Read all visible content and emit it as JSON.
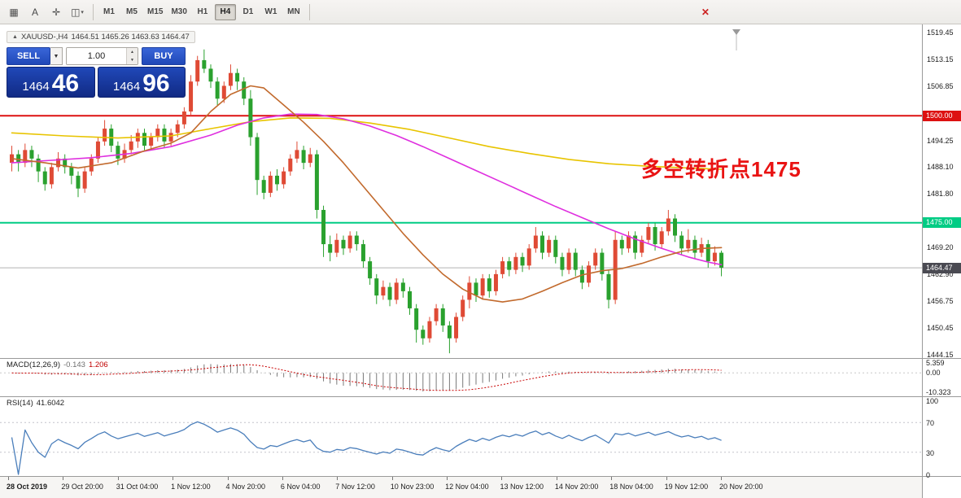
{
  "toolbar": {
    "icons": [
      {
        "name": "grid-icon",
        "glyph": "▦"
      },
      {
        "name": "text-tool-icon",
        "glyph": "A"
      },
      {
        "name": "crosshair-icon",
        "glyph": "✛"
      },
      {
        "name": "draw-tools-icon",
        "glyph": "◫"
      }
    ],
    "dropdown_glyph": "▾",
    "timeframes": [
      "M1",
      "M5",
      "M15",
      "M30",
      "H1",
      "H4",
      "D1",
      "W1",
      "MN"
    ],
    "active_timeframe": "H4",
    "delete_icon_glyph": "✕"
  },
  "chart": {
    "marker": "▲",
    "symbol_period": "XAUUSD-,H4",
    "ohlc": "1464.51 1465.26 1463.63 1464.47"
  },
  "trade_panel": {
    "sell_label": "SELL",
    "buy_label": "BUY",
    "dropdown_glyph": "▼",
    "volume": "1.00",
    "spinner_up": "▲",
    "spinner_down": "▼",
    "sell_price_big": "1464",
    "sell_price_pips": "46",
    "buy_price_big": "1464",
    "buy_price_pips": "96"
  },
  "annotation": {
    "text": "多空转折点1475",
    "color": "#e91313"
  },
  "lines": {
    "resistance": {
      "price": "1500.00",
      "color": "#dd1111"
    },
    "support": {
      "price": "1475.00",
      "color": "#00cc84"
    },
    "current": {
      "price": "1464.47",
      "color": "#4a4a52"
    }
  },
  "price_axis": {
    "ticks": [
      "1519.45",
      "1513.15",
      "1506.85",
      "1500.00",
      "1494.25",
      "1488.10",
      "1481.80",
      "1475.00",
      "1469.20",
      "1462.90",
      "1456.75",
      "1450.45",
      "1444.15"
    ]
  },
  "macd": {
    "name": "MACD(12,26,9)",
    "main_value": "-0.143",
    "signal_value": "1.206",
    "axis": [
      "5.359",
      "0.00",
      "-10.323"
    ]
  },
  "rsi": {
    "name": "RSI(14)",
    "value": "41.6042",
    "axis": [
      "100",
      "70",
      "30",
      "0"
    ],
    "levels": [
      70,
      30
    ]
  },
  "time_axis": {
    "labels": [
      "28 Oct 2019",
      "29 Oct 20:00",
      "31 Oct 04:00",
      "1 Nov 12:00",
      "4 Nov 20:00",
      "6 Nov 04:00",
      "7 Nov 12:00",
      "10 Nov 23:00",
      "12 Nov 04:00",
      "13 Nov 12:00",
      "14 Nov 20:00",
      "18 Nov 04:00",
      "19 Nov 12:00",
      "20 Nov 20:00"
    ]
  },
  "chart_data": {
    "type": "candlestick",
    "symbol": "XAUUSD-",
    "timeframe": "H4",
    "up_color": "#df4a35",
    "down_color": "#2aa12e",
    "price_range": [
      1444.15,
      1519.45
    ],
    "horizontal_levels": [
      1500.0,
      1475.0,
      1464.47
    ],
    "indicators": {
      "macd": {
        "fast": 12,
        "slow": 26,
        "signal": 9
      },
      "rsi": {
        "period": 14
      }
    },
    "candles": [
      [
        1489,
        1493,
        1487,
        1491
      ],
      [
        1491,
        1492,
        1487,
        1489
      ],
      [
        1489,
        1493.5,
        1488,
        1492
      ],
      [
        1492,
        1493,
        1488,
        1490
      ],
      [
        1490,
        1491,
        1484.5,
        1487
      ],
      [
        1487,
        1488,
        1482.5,
        1484
      ],
      [
        1484,
        1489,
        1483,
        1488
      ],
      [
        1488,
        1491.5,
        1487,
        1490
      ],
      [
        1490,
        1491,
        1486.5,
        1488
      ],
      [
        1488,
        1489,
        1484,
        1486
      ],
      [
        1486,
        1487,
        1481,
        1483
      ],
      [
        1483,
        1488,
        1482,
        1487
      ],
      [
        1487,
        1491,
        1486,
        1490
      ],
      [
        1490,
        1495,
        1489,
        1494
      ],
      [
        1494,
        1499,
        1493,
        1497
      ],
      [
        1497,
        1498,
        1491.5,
        1493
      ],
      [
        1493,
        1494,
        1488.5,
        1490
      ],
      [
        1490,
        1493.5,
        1489,
        1492
      ],
      [
        1492,
        1495.5,
        1491,
        1494
      ],
      [
        1494,
        1497,
        1492.5,
        1496
      ],
      [
        1496,
        1497,
        1492,
        1493
      ],
      [
        1493,
        1496,
        1492,
        1495
      ],
      [
        1495,
        1498,
        1494,
        1497
      ],
      [
        1497,
        1498,
        1492.5,
        1494
      ],
      [
        1494,
        1497,
        1493,
        1496
      ],
      [
        1496,
        1499,
        1495,
        1498
      ],
      [
        1498,
        1502,
        1497,
        1501
      ],
      [
        1501,
        1509.5,
        1500,
        1508
      ],
      [
        1508,
        1514,
        1507,
        1513
      ],
      [
        1513,
        1515.5,
        1510,
        1511
      ],
      [
        1511,
        1512,
        1506.5,
        1508
      ],
      [
        1508,
        1509,
        1502.5,
        1504
      ],
      [
        1504,
        1508,
        1503,
        1507
      ],
      [
        1507,
        1512,
        1506,
        1510
      ],
      [
        1510,
        1511,
        1506,
        1508
      ],
      [
        1508,
        1509,
        1502.5,
        1504
      ],
      [
        1504,
        1506,
        1493,
        1495
      ],
      [
        1495,
        1496,
        1481.5,
        1485
      ],
      [
        1485,
        1486,
        1480.5,
        1482
      ],
      [
        1482,
        1487,
        1481,
        1486
      ],
      [
        1486,
        1487.5,
        1482.5,
        1484
      ],
      [
        1484,
        1488,
        1483,
        1487
      ],
      [
        1487,
        1491,
        1486,
        1490
      ],
      [
        1490,
        1494,
        1489,
        1492
      ],
      [
        1492,
        1493,
        1487.5,
        1489
      ],
      [
        1489,
        1492.5,
        1488,
        1491
      ],
      [
        1491,
        1492,
        1476,
        1478
      ],
      [
        1478,
        1479,
        1467,
        1470
      ],
      [
        1470,
        1472,
        1466,
        1468
      ],
      [
        1468,
        1472.5,
        1467,
        1471
      ],
      [
        1471,
        1472,
        1467.5,
        1469
      ],
      [
        1469,
        1473,
        1468,
        1472
      ],
      [
        1472,
        1473,
        1468.5,
        1470
      ],
      [
        1470,
        1471,
        1464.5,
        1466
      ],
      [
        1466,
        1467,
        1460.5,
        1462
      ],
      [
        1462,
        1463,
        1456,
        1458
      ],
      [
        1458,
        1461.5,
        1457,
        1460
      ],
      [
        1460,
        1461,
        1455.5,
        1457
      ],
      [
        1457,
        1462,
        1456,
        1461
      ],
      [
        1461,
        1462,
        1457.5,
        1459
      ],
      [
        1459,
        1460,
        1453.5,
        1455
      ],
      [
        1455,
        1456,
        1447,
        1450
      ],
      [
        1450,
        1451,
        1446.5,
        1448
      ],
      [
        1448,
        1453,
        1447,
        1452
      ],
      [
        1452,
        1456,
        1451,
        1455
      ],
      [
        1455,
        1456,
        1449.5,
        1451
      ],
      [
        1451,
        1452,
        1444.5,
        1448
      ],
      [
        1448,
        1454,
        1447,
        1453
      ],
      [
        1453,
        1458,
        1452,
        1457
      ],
      [
        1457,
        1462.5,
        1455,
        1461
      ],
      [
        1461,
        1462,
        1456.5,
        1458
      ],
      [
        1458,
        1463,
        1457,
        1462
      ],
      [
        1462,
        1463,
        1457.5,
        1459
      ],
      [
        1459,
        1464,
        1458,
        1463
      ],
      [
        1463,
        1467,
        1462,
        1466
      ],
      [
        1466,
        1467,
        1462.5,
        1464
      ],
      [
        1464,
        1468,
        1463,
        1467
      ],
      [
        1467,
        1468,
        1463.5,
        1465
      ],
      [
        1465,
        1470,
        1464,
        1469
      ],
      [
        1469,
        1474,
        1468,
        1472
      ],
      [
        1472,
        1473,
        1466.5,
        1468
      ],
      [
        1468,
        1472,
        1467,
        1471
      ],
      [
        1471,
        1472,
        1465.5,
        1467
      ],
      [
        1467,
        1468,
        1462.5,
        1464
      ],
      [
        1464,
        1469,
        1463,
        1468
      ],
      [
        1468,
        1469,
        1462.5,
        1464
      ],
      [
        1464,
        1465,
        1459.5,
        1461
      ],
      [
        1461,
        1466,
        1460,
        1465
      ],
      [
        1465,
        1469,
        1464,
        1468
      ],
      [
        1468,
        1469,
        1461.5,
        1463
      ],
      [
        1463,
        1464,
        1455,
        1457
      ],
      [
        1457,
        1473,
        1456,
        1471
      ],
      [
        1471,
        1472,
        1467.5,
        1469
      ],
      [
        1469,
        1473,
        1468,
        1472
      ],
      [
        1472,
        1473,
        1466.5,
        1468
      ],
      [
        1468,
        1472,
        1467,
        1471
      ],
      [
        1471,
        1475,
        1470,
        1474
      ],
      [
        1474,
        1475,
        1468.5,
        1470
      ],
      [
        1470,
        1474,
        1469,
        1473
      ],
      [
        1473,
        1478,
        1472,
        1476
      ],
      [
        1476,
        1477,
        1470.5,
        1472
      ],
      [
        1472,
        1473,
        1467.5,
        1469
      ],
      [
        1469,
        1473.5,
        1468,
        1471
      ],
      [
        1471,
        1472,
        1466.5,
        1468
      ],
      [
        1468,
        1471.5,
        1467,
        1470
      ],
      [
        1470,
        1471,
        1464.5,
        1466
      ],
      [
        1466,
        1469.5,
        1465,
        1468
      ],
      [
        1468,
        1468.5,
        1462.5,
        1464.5
      ]
    ],
    "moving_averages": [
      {
        "name": "slow",
        "color": "#e8c400",
        "points": [
          [
            0,
            1496
          ],
          [
            8,
            1495.3
          ],
          [
            16,
            1494.8
          ],
          [
            24,
            1495.3
          ],
          [
            30,
            1497
          ],
          [
            36,
            1498.6
          ],
          [
            42,
            1499.5
          ],
          [
            48,
            1499.4
          ],
          [
            54,
            1498.3
          ],
          [
            60,
            1496.8
          ],
          [
            66,
            1494.8
          ],
          [
            72,
            1492.8
          ],
          [
            78,
            1491.2
          ],
          [
            84,
            1489.8
          ],
          [
            90,
            1488.8
          ],
          [
            96,
            1488.2
          ],
          [
            102,
            1487.8
          ],
          [
            107,
            1487.5
          ]
        ]
      },
      {
        "name": "medium",
        "color": "#df2fdf",
        "points": [
          [
            0,
            1489
          ],
          [
            6,
            1489.6
          ],
          [
            12,
            1490.2
          ],
          [
            18,
            1491.2
          ],
          [
            24,
            1492.8
          ],
          [
            30,
            1495.5
          ],
          [
            34,
            1497.8
          ],
          [
            38,
            1499.5
          ],
          [
            42,
            1500.4
          ],
          [
            46,
            1500.3
          ],
          [
            50,
            1499.3
          ],
          [
            54,
            1497.6
          ],
          [
            58,
            1495.4
          ],
          [
            62,
            1492.8
          ],
          [
            66,
            1490
          ],
          [
            70,
            1487.2
          ],
          [
            74,
            1484.4
          ],
          [
            78,
            1481.6
          ],
          [
            82,
            1478.8
          ],
          [
            86,
            1476.2
          ],
          [
            90,
            1473.6
          ],
          [
            94,
            1471.2
          ],
          [
            98,
            1469
          ],
          [
            102,
            1467
          ],
          [
            105,
            1465.8
          ],
          [
            107,
            1465.2
          ]
        ]
      },
      {
        "name": "fast",
        "color": "#c26a2d",
        "points": [
          [
            0,
            1490
          ],
          [
            5,
            1489
          ],
          [
            10,
            1487.8
          ],
          [
            15,
            1489
          ],
          [
            20,
            1491.8
          ],
          [
            24,
            1493.6
          ],
          [
            27,
            1496
          ],
          [
            30,
            1501
          ],
          [
            33,
            1505
          ],
          [
            36,
            1507
          ],
          [
            38,
            1506.5
          ],
          [
            41,
            1502.5
          ],
          [
            44,
            1498.5
          ],
          [
            47,
            1494
          ],
          [
            50,
            1489
          ],
          [
            53,
            1483.5
          ],
          [
            56,
            1478
          ],
          [
            59,
            1472.5
          ],
          [
            62,
            1467.5
          ],
          [
            65,
            1463
          ],
          [
            68,
            1459.5
          ],
          [
            71,
            1457.2
          ],
          [
            74,
            1456.5
          ],
          [
            77,
            1457.2
          ],
          [
            80,
            1459
          ],
          [
            83,
            1461
          ],
          [
            86,
            1462.8
          ],
          [
            89,
            1463.8
          ],
          [
            92,
            1464.3
          ],
          [
            95,
            1465.5
          ],
          [
            98,
            1467
          ],
          [
            101,
            1468.3
          ],
          [
            104,
            1469
          ],
          [
            107,
            1469.2
          ]
        ]
      }
    ]
  }
}
